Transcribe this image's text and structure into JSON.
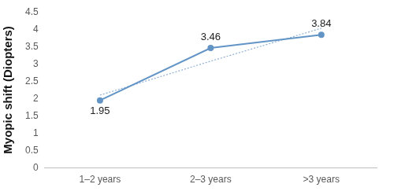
{
  "chart_data": {
    "type": "line",
    "y_label": "Myopic shift (Diopters)",
    "categories": [
      "1–2 years",
      "2–3 years",
      ">3 years"
    ],
    "series": [
      {
        "color": "#6394c6",
        "values": [
          1.95,
          3.46,
          3.84
        ],
        "marker": "circle",
        "line_style": "solid",
        "data_labels": true
      },
      {
        "color": "#8fb0d6",
        "values": [
          2.1,
          3.08,
          4.03
        ],
        "marker": "none",
        "line_style": "dotted"
      }
    ],
    "ylim": [
      0,
      4.5
    ],
    "yticks": [
      0,
      0.5,
      1,
      1.5,
      2,
      2.5,
      3,
      3.5,
      4,
      4.5
    ],
    "grid": false
  }
}
